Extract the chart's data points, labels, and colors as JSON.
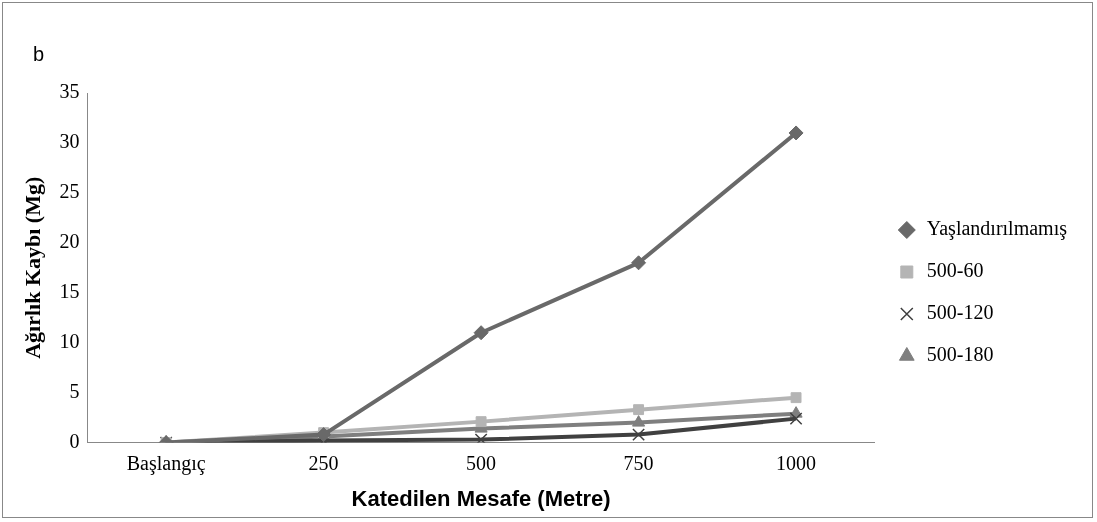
{
  "chart_data": {
    "type": "line",
    "title": "b",
    "xlabel": "Katedilen Mesafe (Metre)",
    "ylabel": "Ağırlık Kaybı (Mg)",
    "categories": [
      "Başlangıç",
      "250",
      "500",
      "750",
      "1000"
    ],
    "series": [
      {
        "name": "Yaşlandırılmamış",
        "color": "#696969",
        "marker": "diamond",
        "values": [
          0,
          0.8,
          11,
          18,
          31
        ]
      },
      {
        "name": "500-60",
        "color": "#b4b4b4",
        "marker": "square",
        "values": [
          0,
          1,
          2.1,
          3.3,
          4.5
        ]
      },
      {
        "name": "500-120",
        "color": "#404040",
        "marker": "cross",
        "values": [
          0,
          0.2,
          0.3,
          0.8,
          2.4
        ]
      },
      {
        "name": "500-180",
        "color": "#7f7f7f",
        "marker": "triangle",
        "values": [
          0,
          0.6,
          1.4,
          2,
          2.9
        ]
      }
    ],
    "ylim": [
      0,
      35
    ],
    "yticks": [
      0,
      5,
      10,
      15,
      20,
      25,
      30,
      35
    ],
    "grid": false,
    "legend": "right",
    "line_style": "solid"
  }
}
